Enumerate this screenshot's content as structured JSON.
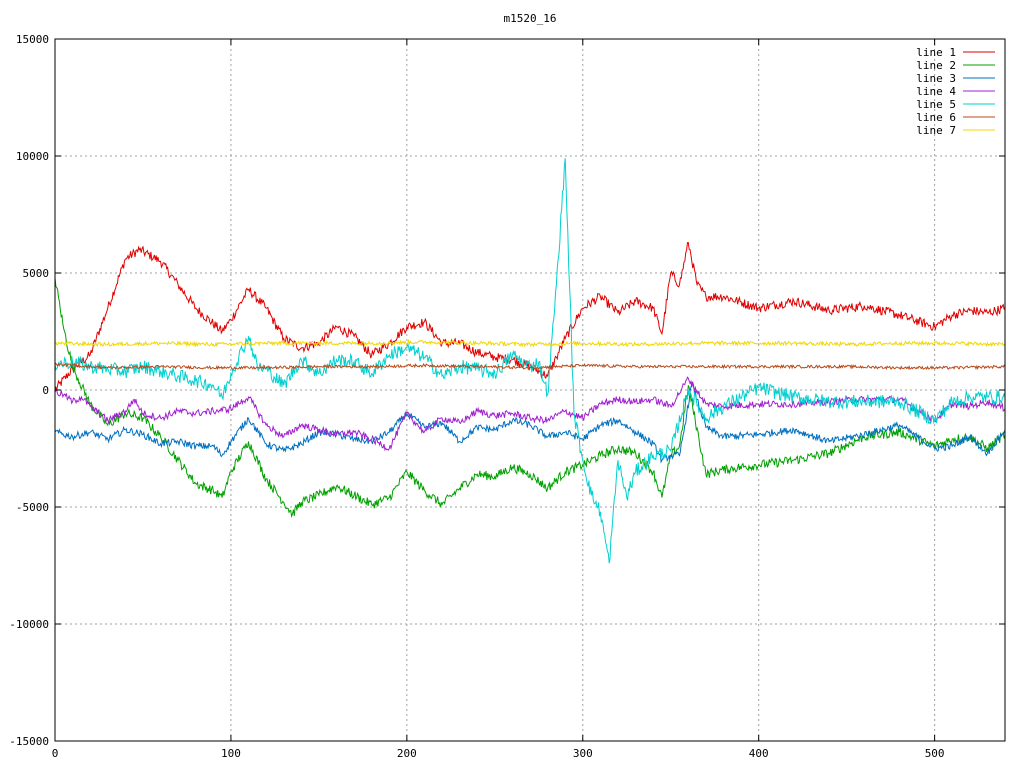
{
  "chart_data": {
    "type": "line",
    "title": "m1520_16",
    "xlabel": "",
    "ylabel": "",
    "xlim": [
      0,
      540
    ],
    "ylim": [
      -15000,
      15000
    ],
    "xticks": [
      0,
      100,
      200,
      300,
      400,
      500
    ],
    "yticks": [
      -15000,
      -10000,
      -5000,
      0,
      5000,
      10000,
      15000
    ],
    "grid": true,
    "legend_position": "top-right",
    "series": [
      {
        "name": "line 1",
        "color": "#e00000",
        "x": [
          0,
          10,
          20,
          30,
          40,
          48,
          60,
          70,
          80,
          95,
          100,
          110,
          120,
          130,
          140,
          150,
          160,
          170,
          180,
          190,
          200,
          210,
          220,
          230,
          240,
          250,
          260,
          270,
          280,
          285,
          290,
          300,
          310,
          320,
          330,
          340,
          345,
          350,
          355,
          360,
          365,
          370,
          380,
          400,
          420,
          440,
          460,
          480,
          500,
          510,
          520,
          530,
          540
        ],
        "y": [
          0,
          900,
          1500,
          3500,
          5600,
          6000,
          5500,
          4500,
          3500,
          2500,
          3000,
          4300,
          3500,
          2200,
          1800,
          2000,
          2700,
          2300,
          1500,
          2000,
          2700,
          2900,
          2000,
          2000,
          1600,
          1400,
          1300,
          1000,
          600,
          1400,
          2200,
          3500,
          4000,
          3300,
          3800,
          3500,
          2400,
          5000,
          4500,
          6300,
          4500,
          4000,
          4000,
          3500,
          3800,
          3400,
          3600,
          3200,
          2700,
          3200,
          3400,
          3300,
          3500
        ]
      },
      {
        "name": "line 2",
        "color": "#00a000",
        "x": [
          0,
          5,
          10,
          20,
          30,
          40,
          50,
          60,
          70,
          80,
          90,
          95,
          100,
          110,
          120,
          130,
          135,
          140,
          150,
          160,
          170,
          180,
          190,
          200,
          210,
          220,
          230,
          240,
          250,
          260,
          270,
          280,
          290,
          300,
          310,
          320,
          330,
          340,
          345,
          350,
          355,
          360,
          370,
          380,
          400,
          420,
          440,
          460,
          480,
          500,
          510,
          520,
          530,
          540
        ],
        "y": [
          4800,
          2600,
          1000,
          -600,
          -1500,
          -1000,
          -1200,
          -2000,
          -3000,
          -4000,
          -4300,
          -4600,
          -3500,
          -2200,
          -3800,
          -4800,
          -5300,
          -4800,
          -4500,
          -4100,
          -4500,
          -4900,
          -4600,
          -3500,
          -4300,
          -4900,
          -4200,
          -3600,
          -3700,
          -3300,
          -3600,
          -4200,
          -3500,
          -3200,
          -2800,
          -2500,
          -2700,
          -3500,
          -4600,
          -2800,
          -2400,
          200,
          -3600,
          -3400,
          -3200,
          -3000,
          -2700,
          -2000,
          -1800,
          -2400,
          -2100,
          -2000,
          -2500,
          -1900
        ]
      },
      {
        "name": "line 3",
        "color": "#0070c0",
        "x": [
          0,
          10,
          20,
          30,
          40,
          50,
          60,
          70,
          80,
          90,
          95,
          100,
          110,
          120,
          130,
          140,
          150,
          160,
          170,
          180,
          190,
          200,
          210,
          220,
          230,
          240,
          250,
          260,
          270,
          280,
          290,
          300,
          310,
          320,
          330,
          340,
          345,
          350,
          355,
          358,
          362,
          370,
          380,
          400,
          420,
          440,
          460,
          480,
          500,
          510,
          520,
          530,
          540
        ],
        "y": [
          -1800,
          -2000,
          -1800,
          -2100,
          -1700,
          -1900,
          -2300,
          -2200,
          -2400,
          -2400,
          -2800,
          -2200,
          -1200,
          -2300,
          -2600,
          -2300,
          -1800,
          -1900,
          -2100,
          -2200,
          -1800,
          -1000,
          -1600,
          -1400,
          -2200,
          -1600,
          -1700,
          -1300,
          -1500,
          -2000,
          -1800,
          -2100,
          -1500,
          -1300,
          -1800,
          -2300,
          -3000,
          -2800,
          -2800,
          -1500,
          300,
          -1600,
          -2000,
          -1900,
          -1700,
          -2200,
          -1900,
          -1500,
          -2500,
          -2400,
          -2000,
          -2700,
          -1700
        ]
      },
      {
        "name": "line 4",
        "color": "#a020d0",
        "x": [
          0,
          5,
          10,
          15,
          20,
          30,
          40,
          45,
          50,
          60,
          70,
          80,
          90,
          100,
          110,
          120,
          130,
          140,
          150,
          160,
          170,
          180,
          190,
          200,
          210,
          220,
          230,
          240,
          250,
          260,
          270,
          280,
          290,
          300,
          310,
          320,
          330,
          340,
          350,
          360,
          370,
          380,
          400,
          420,
          440,
          460,
          480,
          500,
          510,
          520,
          530,
          540
        ],
        "y": [
          -100,
          -200,
          -500,
          -300,
          -700,
          -1300,
          -900,
          -400,
          -1000,
          -1200,
          -900,
          -1000,
          -900,
          -800,
          -300,
          -1500,
          -2000,
          -1500,
          -1700,
          -1900,
          -1800,
          -2100,
          -2500,
          -1000,
          -1800,
          -1200,
          -1400,
          -900,
          -1100,
          -1000,
          -1200,
          -1300,
          -900,
          -1200,
          -600,
          -400,
          -500,
          -400,
          -700,
          500,
          -600,
          -700,
          -600,
          -600,
          -500,
          -400,
          -400,
          -1300,
          -600,
          -700,
          -500,
          -800
        ]
      },
      {
        "name": "line 5",
        "color": "#00d0d0",
        "x": [
          0,
          10,
          20,
          30,
          40,
          50,
          60,
          70,
          80,
          90,
          95,
          100,
          110,
          115,
          120,
          130,
          140,
          150,
          160,
          170,
          180,
          190,
          200,
          210,
          220,
          230,
          240,
          250,
          260,
          270,
          275,
          280,
          285,
          290,
          295,
          300,
          305,
          310,
          315,
          320,
          325,
          330,
          340,
          350,
          360,
          370,
          380,
          400,
          420,
          440,
          460,
          480,
          500,
          510,
          520,
          530,
          540
        ],
        "y": [
          1100,
          1200,
          1000,
          900,
          800,
          1000,
          800,
          600,
          400,
          200,
          -300,
          700,
          2300,
          1000,
          900,
          200,
          1300,
          700,
          1300,
          1200,
          700,
          1500,
          1800,
          1400,
          600,
          1000,
          900,
          700,
          1500,
          1000,
          1200,
          -200,
          4500,
          9900,
          -1000,
          -3000,
          -4500,
          -5200,
          -7400,
          -3000,
          -4600,
          -3500,
          -2800,
          -2600,
          0,
          -1200,
          -700,
          100,
          -300,
          -500,
          -500,
          -500,
          -1300,
          -500,
          -300,
          -300,
          -300
        ]
      },
      {
        "name": "line 6",
        "color": "#b84a1a",
        "x": [
          0,
          30,
          60,
          90,
          120,
          150,
          180,
          210,
          240,
          270,
          300,
          330,
          360,
          390,
          420,
          450,
          480,
          510,
          540
        ],
        "y": [
          1100,
          950,
          1000,
          950,
          950,
          1000,
          1000,
          1050,
          1000,
          950,
          1050,
          1000,
          1000,
          1000,
          1000,
          1000,
          950,
          950,
          1000
        ]
      },
      {
        "name": "line 7",
        "color": "#f0d800",
        "x": [
          0,
          30,
          60,
          90,
          120,
          150,
          180,
          210,
          240,
          270,
          300,
          330,
          360,
          390,
          420,
          450,
          480,
          510,
          540
        ],
        "y": [
          2000,
          1950,
          2000,
          1950,
          2000,
          2000,
          2000,
          2050,
          2000,
          1950,
          2000,
          1950,
          2000,
          2000,
          2000,
          1950,
          2000,
          2000,
          1950
        ]
      }
    ]
  }
}
